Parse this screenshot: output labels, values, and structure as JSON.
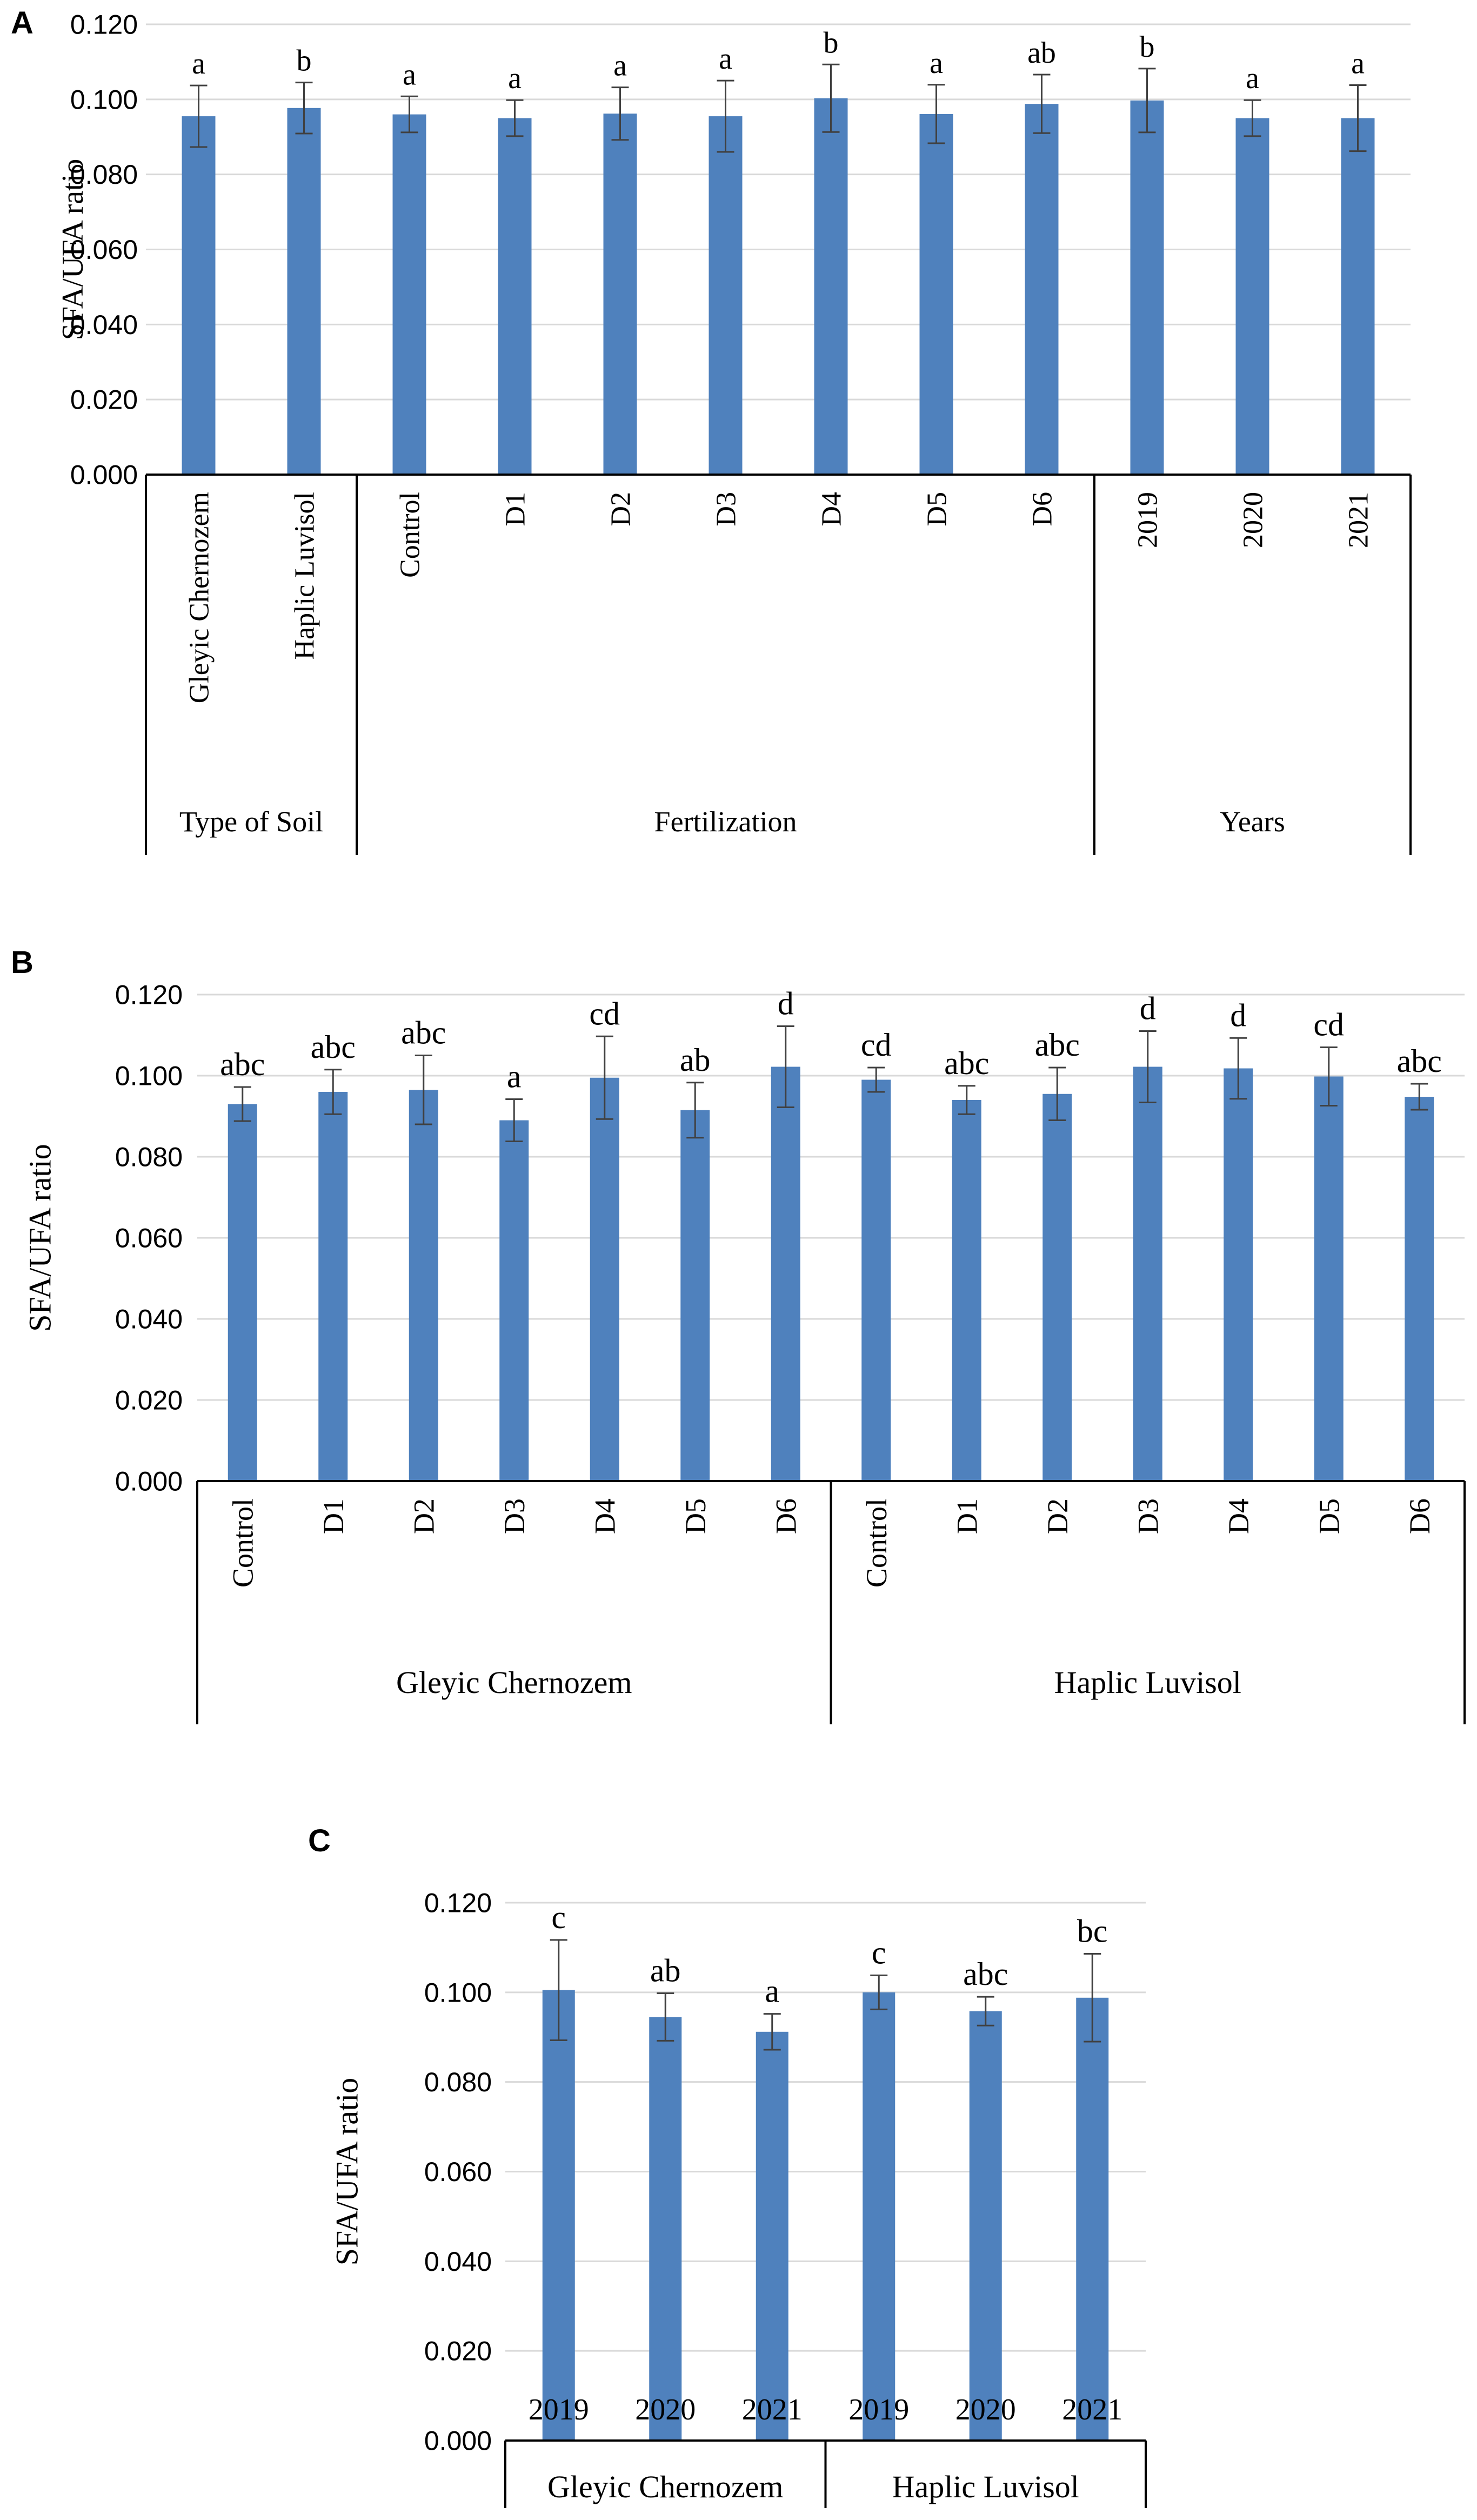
{
  "colors": {
    "bar": "#4f81bd",
    "grid": "#d9d9d9",
    "axis": "#000000",
    "error": "#404040",
    "text": "#000000"
  },
  "chart_data": [
    {
      "panel": "A",
      "type": "bar",
      "ylabel": "SFA/UFA ratio",
      "ylim": [
        0,
        0.12
      ],
      "yticks": [
        "0.000",
        "0.020",
        "0.040",
        "0.060",
        "0.080",
        "0.100",
        "0.120"
      ],
      "grid": true,
      "categories": [
        "Gleyic Chernozem",
        "Haplic Luvisol",
        "Control",
        "D1",
        "D2",
        "D3",
        "D4",
        "D5",
        "D6",
        "2019",
        "2020",
        "2021"
      ],
      "values": [
        0.0955,
        0.0977,
        0.096,
        0.095,
        0.0962,
        0.0955,
        0.1003,
        0.0961,
        0.0988,
        0.0997,
        0.095,
        0.095
      ],
      "errors": [
        0.0082,
        0.0068,
        0.0048,
        0.0048,
        0.007,
        0.0095,
        0.009,
        0.0078,
        0.0078,
        0.0085,
        0.0048,
        0.0088
      ],
      "letters": [
        "a",
        "b",
        "a",
        "a",
        "a",
        "a",
        "b",
        "a",
        "ab",
        "b",
        "a",
        "a"
      ],
      "groups": [
        {
          "label": "Type of Soil",
          "count": 2
        },
        {
          "label": "Fertilization",
          "count": 7
        },
        {
          "label": "Years",
          "count": 3
        }
      ]
    },
    {
      "panel": "B",
      "type": "bar",
      "ylabel": "SFA/UFA ratio",
      "ylim": [
        0,
        0.12
      ],
      "yticks": [
        "0.000",
        "0.020",
        "0.040",
        "0.060",
        "0.080",
        "0.100",
        "0.120"
      ],
      "grid": true,
      "categories": [
        "Control",
        "D1",
        "D2",
        "D3",
        "D4",
        "D5",
        "D6",
        "Control",
        "D1",
        "D2",
        "D3",
        "D4",
        "D5",
        "D6"
      ],
      "values": [
        0.093,
        0.096,
        0.0965,
        0.089,
        0.0995,
        0.0915,
        0.1022,
        0.099,
        0.094,
        0.0955,
        0.1022,
        0.1018,
        0.0998,
        0.0948
      ],
      "errors": [
        0.0042,
        0.0055,
        0.0085,
        0.0052,
        0.0102,
        0.0068,
        0.01,
        0.003,
        0.0035,
        0.0065,
        0.0088,
        0.0075,
        0.0072,
        0.0032
      ],
      "letters": [
        "abc",
        "abc",
        "abc",
        "a",
        "cd",
        "ab",
        "d",
        "cd",
        "abc",
        "abc",
        "d",
        "d",
        "cd",
        "abc"
      ],
      "groups": [
        {
          "label": "Gleyic Chernozem",
          "count": 7
        },
        {
          "label": "Haplic Luvisol",
          "count": 7
        }
      ]
    },
    {
      "panel": "C",
      "type": "bar",
      "ylabel": "SFA/UFA ratio",
      "ylim": [
        0,
        0.12
      ],
      "yticks": [
        "0.000",
        "0.020",
        "0.040",
        "0.060",
        "0.080",
        "0.100",
        "0.120"
      ],
      "grid": true,
      "categories": [
        "2019",
        "2020",
        "2021",
        "2019",
        "2020",
        "2021"
      ],
      "values": [
        0.1005,
        0.0945,
        0.0912,
        0.1,
        0.0958,
        0.0988
      ],
      "errors": [
        0.0112,
        0.0053,
        0.004,
        0.0038,
        0.0032,
        0.0098
      ],
      "letters": [
        "c",
        "ab",
        "a",
        "c",
        "abc",
        "bc"
      ],
      "groups": [
        {
          "label": "Gleyic Chernozem",
          "count": 3
        },
        {
          "label": "Haplic Luvisol",
          "count": 3
        }
      ]
    }
  ]
}
